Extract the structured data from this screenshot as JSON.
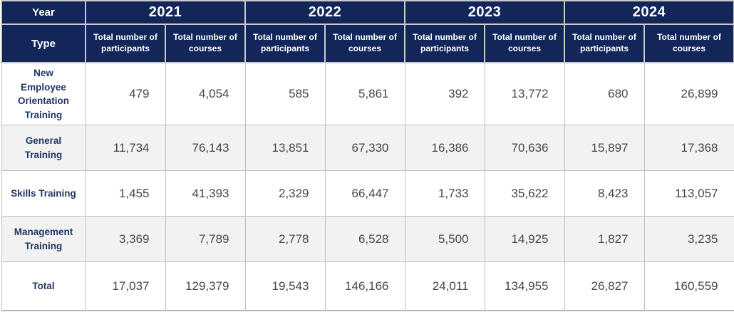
{
  "colors": {
    "header_background": "#12265A",
    "header_text": "#FFFFFF",
    "alt_row_background": "#F2F2F2",
    "grid_line": "#BFBFBF",
    "type_label_text": "#1F3864",
    "number_text": "#44474F"
  },
  "chart_data": {
    "type": "table",
    "corner": {
      "year_label": "Year",
      "type_label": "Type"
    },
    "years": [
      "2021",
      "2022",
      "2023",
      "2024"
    ],
    "metrics": {
      "participants": "Total number of participants",
      "courses": "Total number of courses"
    },
    "rows": [
      {
        "type": "New Employee Orientation Training",
        "values": [
          "479",
          "4,054",
          "585",
          "5,861",
          "392",
          "13,772",
          "680",
          "26,899"
        ]
      },
      {
        "type": "General Training",
        "values": [
          "11,734",
          "76,143",
          "13,851",
          "67,330",
          "16,386",
          "70,636",
          "15,897",
          "17,368"
        ]
      },
      {
        "type": "Skills Training",
        "values": [
          "1,455",
          "41,393",
          "2,329",
          "66,447",
          "1,733",
          "35,622",
          "8,423",
          "113,057"
        ]
      },
      {
        "type": "Management Training",
        "values": [
          "3,369",
          "7,789",
          "2,778",
          "6,528",
          "5,500",
          "14,925",
          "1,827",
          "3,235"
        ]
      },
      {
        "type": "Total",
        "values": [
          "17,037",
          "129,379",
          "19,543",
          "146,166",
          "24,011",
          "134,955",
          "26,827",
          "160,559"
        ]
      }
    ]
  }
}
